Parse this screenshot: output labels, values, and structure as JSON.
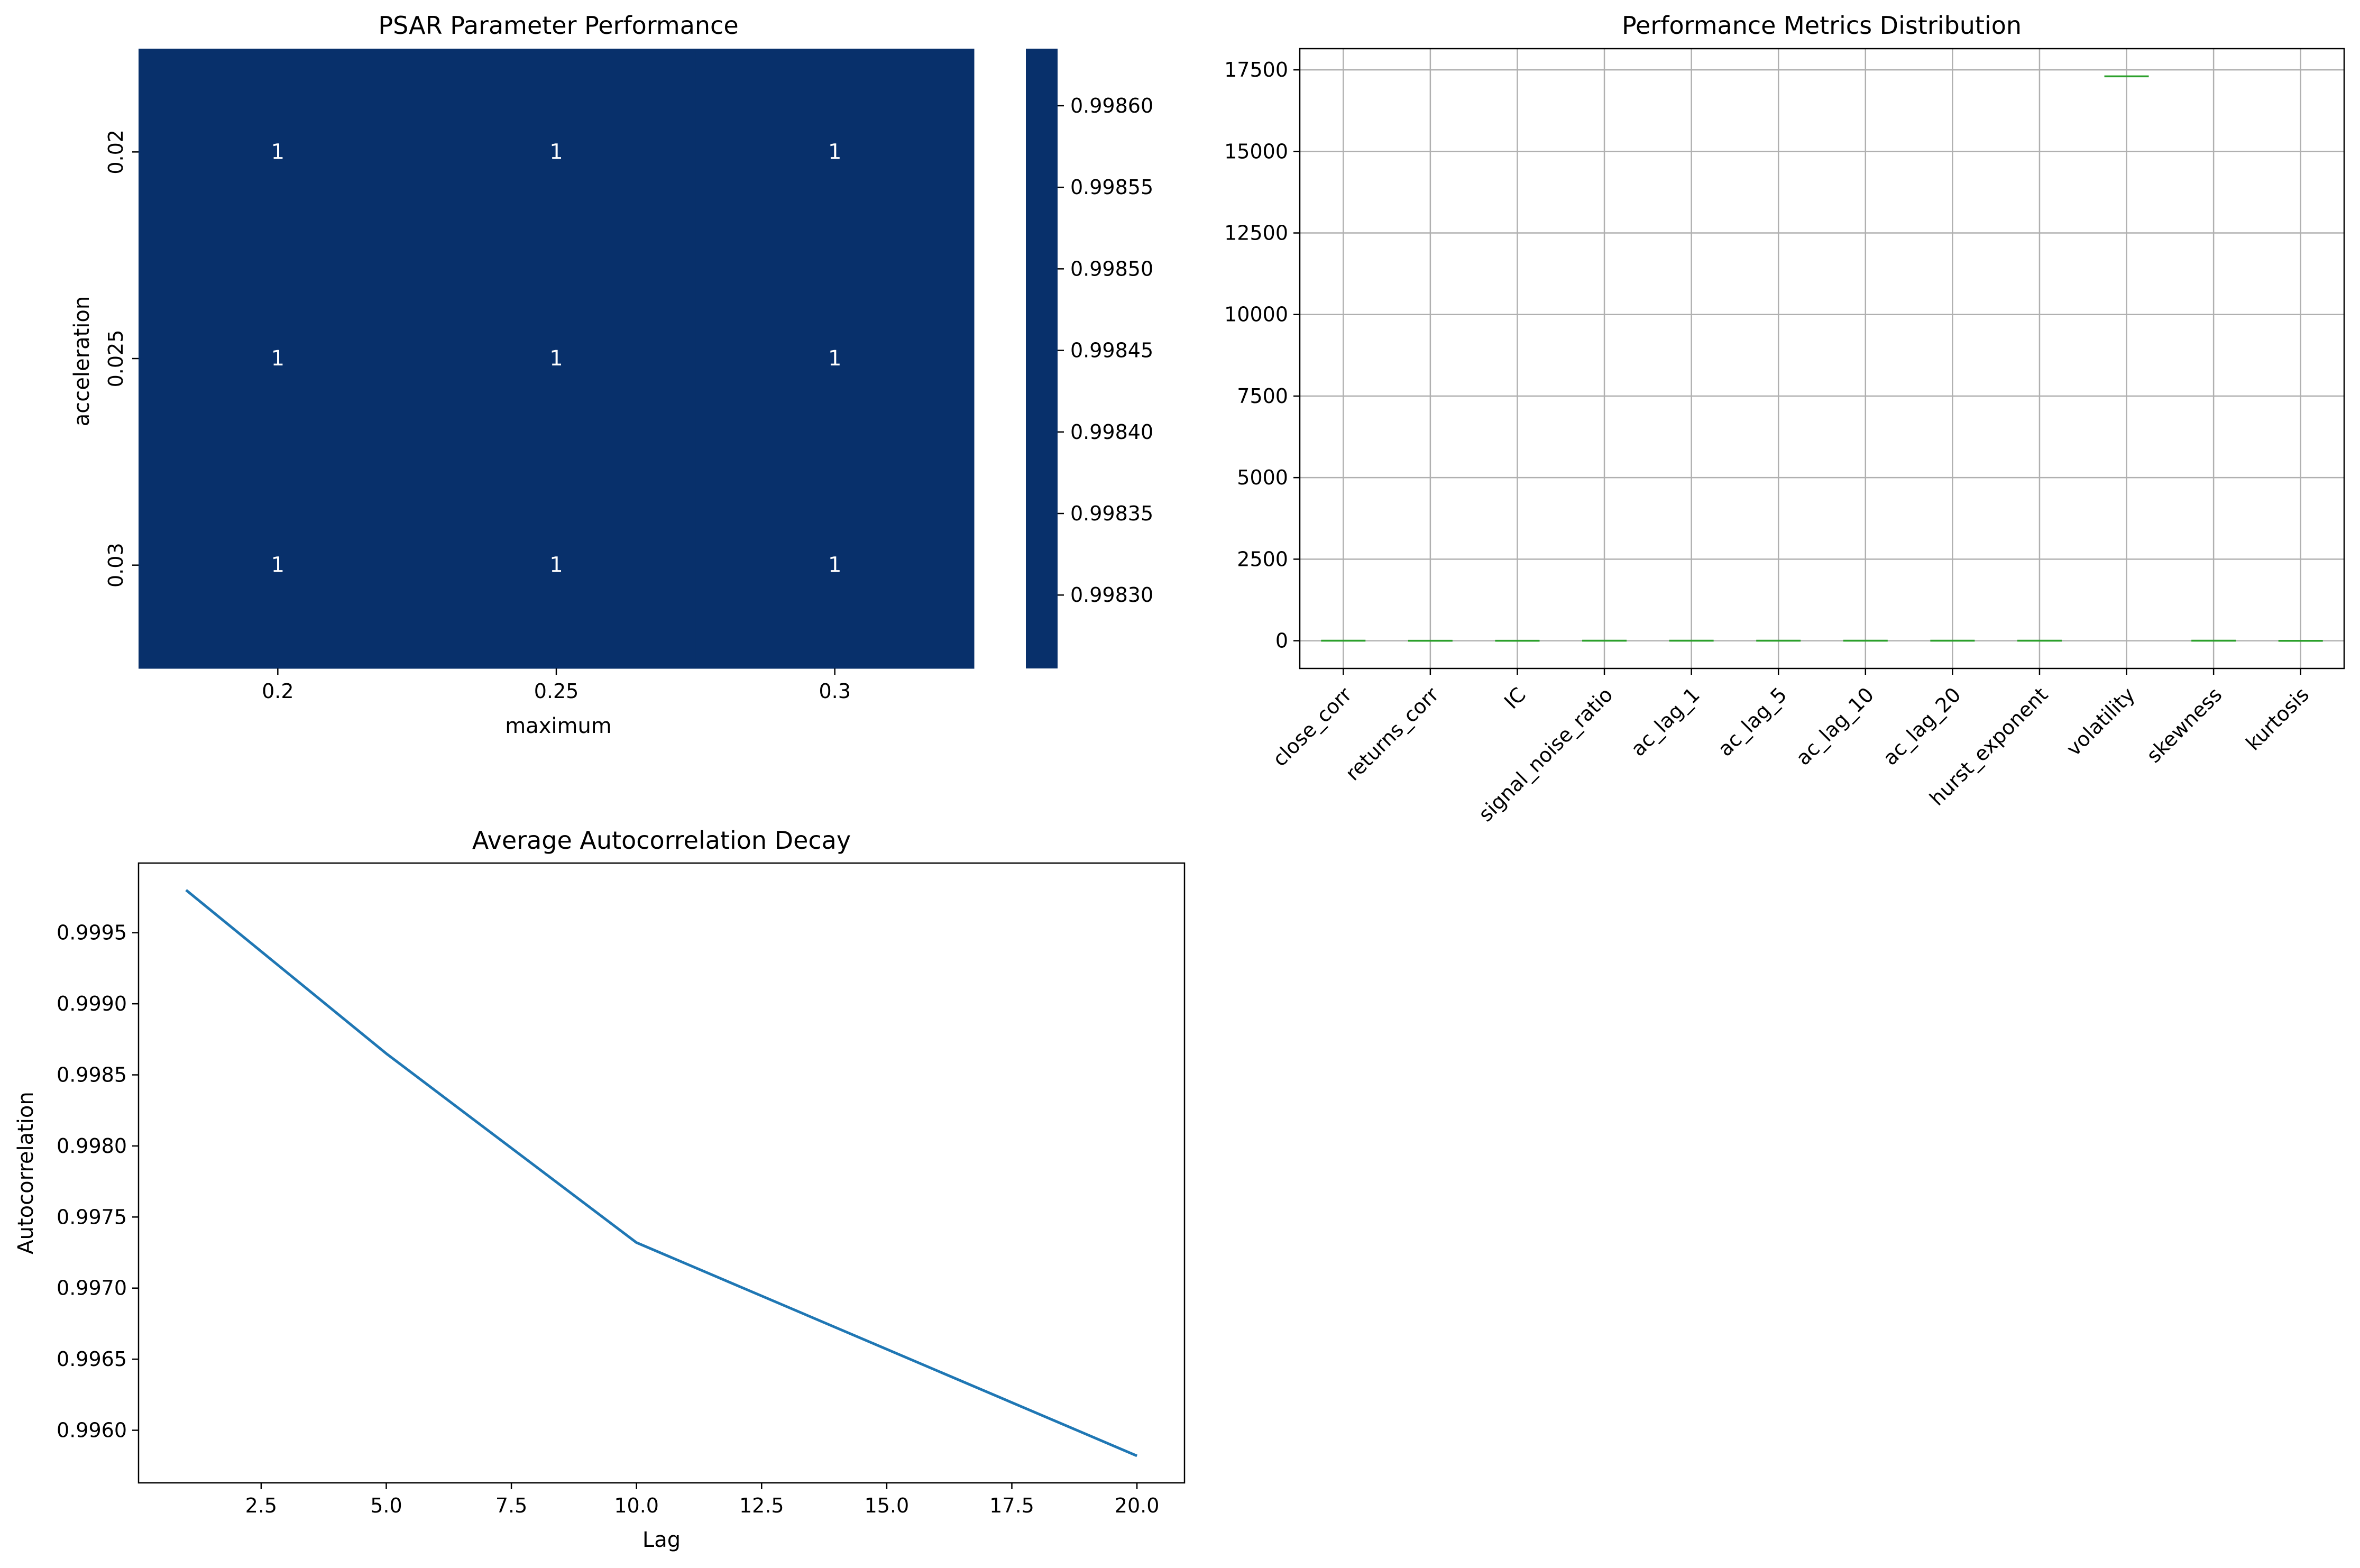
{
  "colors": {
    "heatmap_fill": "#08306b",
    "line": "#1f77b4",
    "box_median": "#2ca02c",
    "grid": "#b0b0b0",
    "axes": "#000000"
  },
  "chart_data": [
    {
      "type": "heatmap",
      "title": "PSAR Parameter Performance",
      "xlabel": "maximum",
      "ylabel": "acceleration",
      "x_categories": [
        "0.2",
        "0.25",
        "0.3"
      ],
      "y_categories": [
        "0.02",
        "0.025",
        "0.03"
      ],
      "values": [
        [
          0.99845,
          0.99845,
          0.99845
        ],
        [
          0.99845,
          0.99845,
          0.99845
        ],
        [
          0.99845,
          0.99845,
          0.99845
        ]
      ],
      "annotations": [
        [
          "1",
          "1",
          "1"
        ],
        [
          "1",
          "1",
          "1"
        ],
        [
          "1",
          "1",
          "1"
        ]
      ],
      "colorbar": {
        "ticks": [
          "0.99860",
          "0.99855",
          "0.99850",
          "0.99845",
          "0.99840",
          "0.99835",
          "0.99830"
        ],
        "range": [
          0.998255,
          0.998635
        ]
      }
    },
    {
      "type": "box",
      "title": "Performance Metrics Distribution",
      "categories": [
        "close_corr",
        "returns_corr",
        "IC",
        "signal_noise_ratio",
        "ac_lag_1",
        "ac_lag_5",
        "ac_lag_10",
        "ac_lag_20",
        "hurst_exponent",
        "volatility",
        "skewness",
        "kurtosis"
      ],
      "medians": [
        0.99,
        0.02,
        0.01,
        0.5,
        0.9998,
        0.9986,
        0.9973,
        0.9958,
        0.5,
        17300,
        0.1,
        -3
      ],
      "yticks": [
        "0",
        "2500",
        "5000",
        "7500",
        "10000",
        "12500",
        "15000",
        "17500"
      ],
      "ylim": [
        -850,
        18150
      ],
      "grid": true
    },
    {
      "type": "line",
      "title": "Average Autocorrelation Decay",
      "xlabel": "Lag",
      "ylabel": "Autocorrelation",
      "x": [
        1,
        5,
        10,
        20
      ],
      "y": [
        0.9998,
        0.99865,
        0.99732,
        0.99582
      ],
      "xticks": [
        "2.5",
        "5.0",
        "7.5",
        "10.0",
        "12.5",
        "15.0",
        "17.5",
        "20.0"
      ],
      "yticks": [
        "0.9960",
        "0.9965",
        "0.9970",
        "0.9975",
        "0.9980",
        "0.9985",
        "0.9990",
        "0.9995"
      ],
      "xlim": [
        0.05,
        20.95
      ],
      "ylim": [
        0.99563,
        0.99999
      ]
    }
  ]
}
